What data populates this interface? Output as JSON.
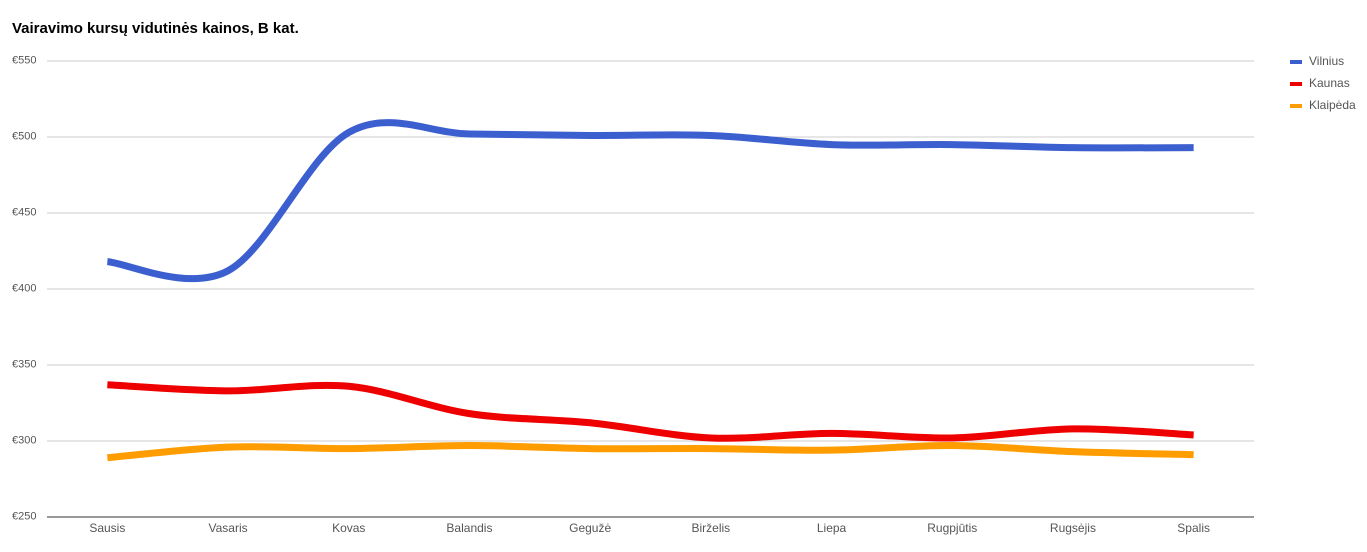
{
  "chart_data": {
    "type": "line",
    "title": "Vairavimo kursų vidutinės kainos, B kat.",
    "categories": [
      "Sausis",
      "Vasaris",
      "Kovas",
      "Balandis",
      "Gegužė",
      "Birželis",
      "Liepa",
      "Rugpjūtis",
      "Rugsėjis",
      "Spalis"
    ],
    "series": [
      {
        "name": "Vilnius",
        "color": "#3c5fd0",
        "values": [
          418,
          412,
          503,
          502,
          501,
          501,
          495,
          495,
          493,
          493
        ]
      },
      {
        "name": "Kaunas",
        "color": "#ee0000",
        "values": [
          337,
          333,
          336,
          318,
          312,
          302,
          305,
          302,
          308,
          304
        ]
      },
      {
        "name": "Klaipėda",
        "color": "#ff9d00",
        "values": [
          289,
          296,
          295,
          297,
          295,
          295,
          294,
          297,
          293,
          291
        ]
      }
    ],
    "ylim": [
      250,
      550
    ],
    "yticks": [
      {
        "value": 250,
        "label": "€250"
      },
      {
        "value": 300,
        "label": "€300"
      },
      {
        "value": 350,
        "label": "€350"
      },
      {
        "value": 400,
        "label": "€400"
      },
      {
        "value": 450,
        "label": "€450"
      },
      {
        "value": 500,
        "label": "€500"
      },
      {
        "value": 550,
        "label": "€550"
      }
    ],
    "grid": true,
    "smooth": true,
    "legend": "right"
  }
}
